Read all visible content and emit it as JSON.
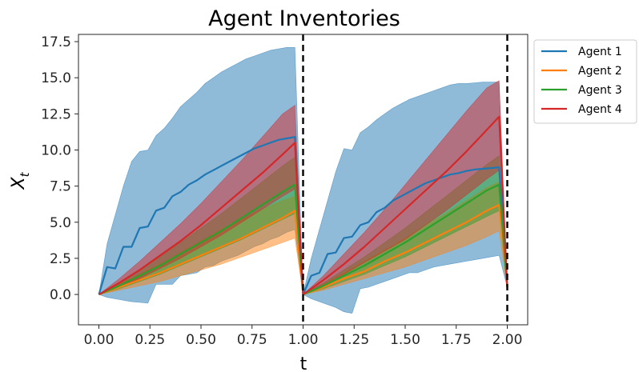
{
  "chart_data": {
    "type": "line",
    "title": "Agent Inventories",
    "xlabel": "t",
    "ylabel": "X",
    "ylabel_subscript": "t",
    "xlim": [
      -0.1,
      2.1
    ],
    "ylim": [
      -2.1,
      18.0
    ],
    "xticks": [
      0.0,
      0.25,
      0.5,
      0.75,
      1.0,
      1.25,
      1.5,
      1.75,
      2.0
    ],
    "xtick_labels": [
      "0.00",
      "0.25",
      "0.50",
      "0.75",
      "1.00",
      "1.25",
      "1.50",
      "1.75",
      "2.00"
    ],
    "yticks": [
      0.0,
      2.5,
      5.0,
      7.5,
      10.0,
      12.5,
      15.0,
      17.5
    ],
    "ytick_labels": [
      "0.0",
      "2.5",
      "5.0",
      "7.5",
      "10.0",
      "12.5",
      "15.0",
      "17.5"
    ],
    "grid": false,
    "legend_position": "outside-top-right",
    "vlines": [
      1.0,
      2.0
    ],
    "series": [
      {
        "name": "Agent 1",
        "color": "#1f77b4",
        "x": [
          0.0,
          0.04,
          0.08,
          0.12,
          0.16,
          0.2,
          0.24,
          0.28,
          0.32,
          0.36,
          0.4,
          0.44,
          0.48,
          0.52,
          0.56,
          0.6,
          0.64,
          0.68,
          0.72,
          0.76,
          0.8,
          0.84,
          0.88,
          0.92,
          0.96,
          1.0,
          1.04,
          1.08,
          1.12,
          1.16,
          1.2,
          1.24,
          1.28,
          1.32,
          1.36,
          1.4,
          1.44,
          1.48,
          1.52,
          1.56,
          1.6,
          1.64,
          1.68,
          1.72,
          1.76,
          1.8,
          1.84,
          1.88,
          1.92,
          1.96,
          2.0
        ],
        "y": [
          0.0,
          1.9,
          1.8,
          3.3,
          3.3,
          4.6,
          4.7,
          5.8,
          6.0,
          6.8,
          7.1,
          7.6,
          7.9,
          8.3,
          8.6,
          8.9,
          9.2,
          9.5,
          9.8,
          10.1,
          10.3,
          10.5,
          10.7,
          10.8,
          10.9,
          0.0,
          1.3,
          1.5,
          2.8,
          2.9,
          3.9,
          4.0,
          4.8,
          5.0,
          5.7,
          6.0,
          6.5,
          6.8,
          7.1,
          7.4,
          7.7,
          7.9,
          8.1,
          8.3,
          8.4,
          8.55,
          8.65,
          8.7,
          8.75,
          8.8,
          0.5
        ],
        "band_low": [
          0.0,
          -0.2,
          -0.3,
          -0.4,
          -0.5,
          -0.55,
          -0.6,
          0.7,
          0.7,
          0.7,
          1.3,
          1.4,
          1.5,
          1.9,
          2.0,
          2.3,
          2.5,
          2.7,
          3.0,
          3.3,
          3.5,
          3.8,
          4.0,
          4.3,
          4.5,
          0.0,
          -0.3,
          -0.5,
          -0.7,
          -0.9,
          -1.2,
          -1.3,
          0.4,
          0.5,
          0.7,
          0.9,
          1.1,
          1.3,
          1.5,
          1.5,
          1.7,
          1.9,
          2.0,
          2.1,
          2.2,
          2.3,
          2.4,
          2.5,
          2.6,
          2.7,
          0.5
        ],
        "band_high": [
          0.0,
          3.5,
          5.5,
          7.5,
          9.2,
          9.9,
          10.0,
          11.0,
          11.5,
          12.2,
          13.0,
          13.5,
          14.0,
          14.6,
          15.0,
          15.4,
          15.7,
          16.0,
          16.3,
          16.5,
          16.7,
          16.9,
          17.0,
          17.1,
          17.1,
          0.0,
          2.5,
          4.5,
          6.5,
          8.5,
          10.1,
          10.0,
          11.2,
          11.6,
          12.1,
          12.5,
          12.9,
          13.2,
          13.5,
          13.7,
          13.9,
          14.1,
          14.3,
          14.5,
          14.6,
          14.6,
          14.65,
          14.7,
          14.7,
          14.7,
          0.5
        ]
      },
      {
        "name": "Agent 2",
        "color": "#ff7f0e",
        "x": [
          0.0,
          0.1,
          0.2,
          0.3,
          0.4,
          0.5,
          0.6,
          0.7,
          0.8,
          0.9,
          0.96,
          1.0,
          1.1,
          1.2,
          1.3,
          1.4,
          1.5,
          1.6,
          1.7,
          1.8,
          1.9,
          1.96,
          2.0
        ],
        "y": [
          0.0,
          0.5,
          1.0,
          1.5,
          2.1,
          2.7,
          3.3,
          3.9,
          4.6,
          5.3,
          5.8,
          0.0,
          0.5,
          1.1,
          1.6,
          2.3,
          2.9,
          3.6,
          4.3,
          5.0,
          5.8,
          6.2,
          0.5
        ],
        "band_low": [
          0.0,
          0.3,
          0.6,
          0.9,
          1.3,
          1.7,
          2.1,
          2.6,
          3.1,
          3.6,
          3.9,
          0.0,
          0.3,
          0.7,
          1.1,
          1.5,
          1.9,
          2.4,
          2.9,
          3.4,
          4.0,
          4.4,
          0.5
        ],
        "band_high": [
          0.0,
          0.7,
          1.4,
          2.1,
          2.9,
          3.7,
          4.5,
          5.2,
          5.9,
          6.5,
          6.8,
          0.0,
          0.7,
          1.5,
          2.3,
          3.1,
          3.9,
          4.8,
          5.6,
          6.5,
          7.4,
          7.8,
          0.5
        ]
      },
      {
        "name": "Agent 3",
        "color": "#2ca02c",
        "x": [
          0.0,
          0.1,
          0.2,
          0.3,
          0.4,
          0.5,
          0.6,
          0.7,
          0.8,
          0.9,
          0.96,
          1.0,
          1.1,
          1.2,
          1.3,
          1.4,
          1.5,
          1.6,
          1.7,
          1.8,
          1.9,
          1.96,
          2.0
        ],
        "y": [
          0.0,
          0.6,
          1.3,
          2.0,
          2.8,
          3.6,
          4.4,
          5.3,
          6.2,
          7.1,
          7.6,
          0.0,
          0.6,
          1.3,
          2.0,
          2.8,
          3.6,
          4.5,
          5.4,
          6.3,
          7.2,
          7.6,
          0.5
        ],
        "band_low": [
          0.0,
          0.4,
          0.9,
          1.4,
          2.0,
          2.6,
          3.2,
          3.8,
          4.5,
          5.2,
          5.6,
          0.0,
          0.4,
          0.9,
          1.4,
          2.0,
          2.6,
          3.3,
          4.0,
          4.7,
          5.4,
          5.8,
          0.5
        ],
        "band_high": [
          0.0,
          0.8,
          1.7,
          2.6,
          3.6,
          4.6,
          5.6,
          6.7,
          7.8,
          8.9,
          9.5,
          0.0,
          0.8,
          1.7,
          2.6,
          3.6,
          4.6,
          5.7,
          6.8,
          7.9,
          9.0,
          9.6,
          0.5
        ]
      },
      {
        "name": "Agent 4",
        "color": "#d62728",
        "x": [
          0.0,
          0.1,
          0.2,
          0.3,
          0.4,
          0.5,
          0.6,
          0.7,
          0.8,
          0.9,
          0.96,
          1.0,
          1.1,
          1.2,
          1.3,
          1.4,
          1.5,
          1.6,
          1.7,
          1.8,
          1.9,
          1.96,
          2.0
        ],
        "y": [
          0.0,
          0.8,
          1.7,
          2.7,
          3.7,
          4.8,
          6.0,
          7.2,
          8.4,
          9.7,
          10.5,
          0.0,
          1.0,
          2.1,
          3.3,
          4.6,
          5.9,
          7.2,
          8.5,
          9.9,
          11.4,
          12.3,
          0.5
        ],
        "band_low": [
          0.0,
          0.5,
          1.1,
          1.8,
          2.5,
          3.3,
          4.1,
          5.0,
          5.9,
          6.8,
          7.3,
          0.0,
          0.7,
          1.4,
          2.2,
          3.0,
          3.8,
          4.8,
          5.8,
          6.9,
          8.0,
          8.6,
          0.5
        ],
        "band_high": [
          0.0,
          1.1,
          2.3,
          3.6,
          4.9,
          6.3,
          7.8,
          9.3,
          10.9,
          12.5,
          13.1,
          0.0,
          1.3,
          2.8,
          4.3,
          5.9,
          7.6,
          9.3,
          11.0,
          12.7,
          14.3,
          14.8,
          0.5
        ]
      }
    ]
  }
}
